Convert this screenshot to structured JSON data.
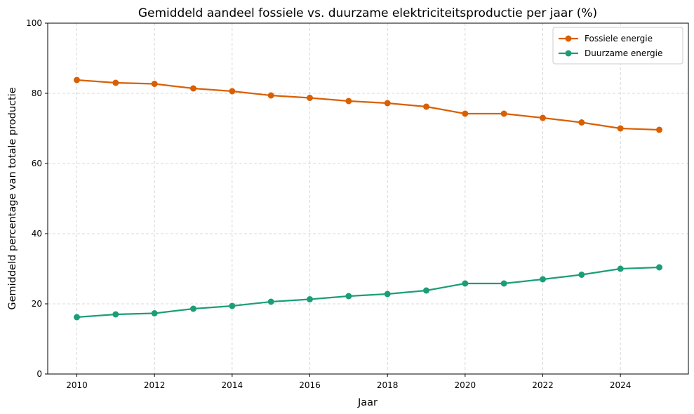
{
  "chart_data": {
    "type": "line",
    "title": "Gemiddeld aandeel fossiele vs. duurzame elektriciteitsproductie per jaar (%)",
    "xlabel": "Jaar",
    "ylabel": "Gemiddeld percentage van totale productie",
    "x": [
      2010,
      2011,
      2012,
      2013,
      2014,
      2015,
      2016,
      2017,
      2018,
      2019,
      2020,
      2021,
      2022,
      2023,
      2024,
      2025
    ],
    "xlim": [
      2009.25,
      2025.75
    ],
    "ylim": [
      0,
      100
    ],
    "xticks": [
      2010,
      2012,
      2014,
      2016,
      2018,
      2020,
      2022,
      2024
    ],
    "yticks": [
      0,
      20,
      40,
      60,
      80,
      100
    ],
    "grid": true,
    "legend_position": "top-right",
    "series": [
      {
        "name": "Fossiele energie",
        "color": "#d95f02",
        "values": [
          83.8,
          83.0,
          82.7,
          81.4,
          80.6,
          79.4,
          78.7,
          77.8,
          77.2,
          76.2,
          74.2,
          74.2,
          73.0,
          71.7,
          70.0,
          69.6
        ]
      },
      {
        "name": "Duurzame energie",
        "color": "#1b9e77",
        "values": [
          16.2,
          17.0,
          17.3,
          18.6,
          19.4,
          20.6,
          21.3,
          22.2,
          22.8,
          23.8,
          25.8,
          25.8,
          27.0,
          28.3,
          30.0,
          30.4
        ]
      }
    ]
  }
}
